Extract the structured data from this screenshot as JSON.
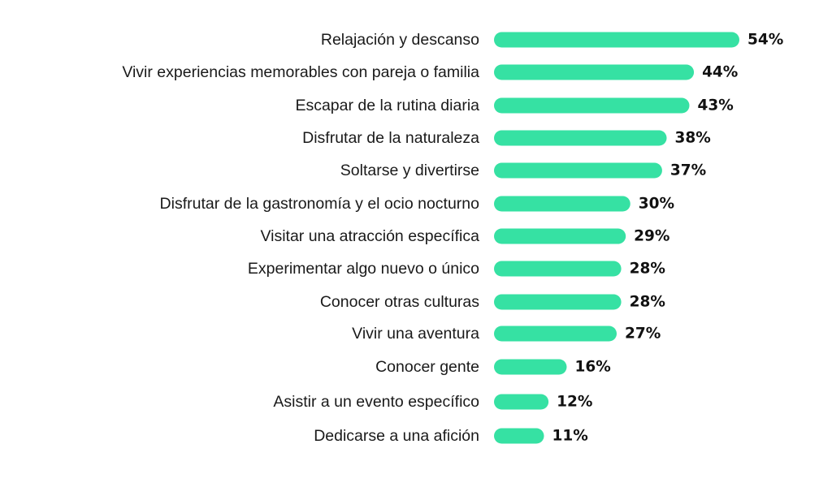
{
  "chart_data": {
    "type": "bar",
    "orientation": "horizontal",
    "categories": [
      "Relajación y descanso",
      "Vivir experiencias memorables con pareja o familia",
      "Escapar de la rutina diaria",
      "Disfrutar de la naturaleza",
      "Soltarse y divertirse",
      "Disfrutar de la gastronomía y el ocio nocturno",
      "Visitar una atracción específica",
      "Experimentar algo nuevo o único",
      "Conocer otras culturas",
      "Vivir una aventura",
      "Conocer gente",
      "Asistir a un evento específico",
      "Dedicarse a una afición"
    ],
    "values": [
      54,
      44,
      43,
      38,
      37,
      30,
      29,
      28,
      28,
      27,
      16,
      12,
      11
    ],
    "value_labels": [
      "54%",
      "44%",
      "43%",
      "38%",
      "37%",
      "30%",
      "29%",
      "28%",
      "28%",
      "27%",
      "16%",
      "12%",
      "11%"
    ],
    "unit": "%",
    "xlim": [
      0,
      54
    ],
    "grid": false,
    "legend": "none",
    "colors": {
      "bar": "#36e1a3",
      "label_text": "#1a1a1a",
      "value_text": "#111111",
      "background": "#ffffff"
    }
  }
}
